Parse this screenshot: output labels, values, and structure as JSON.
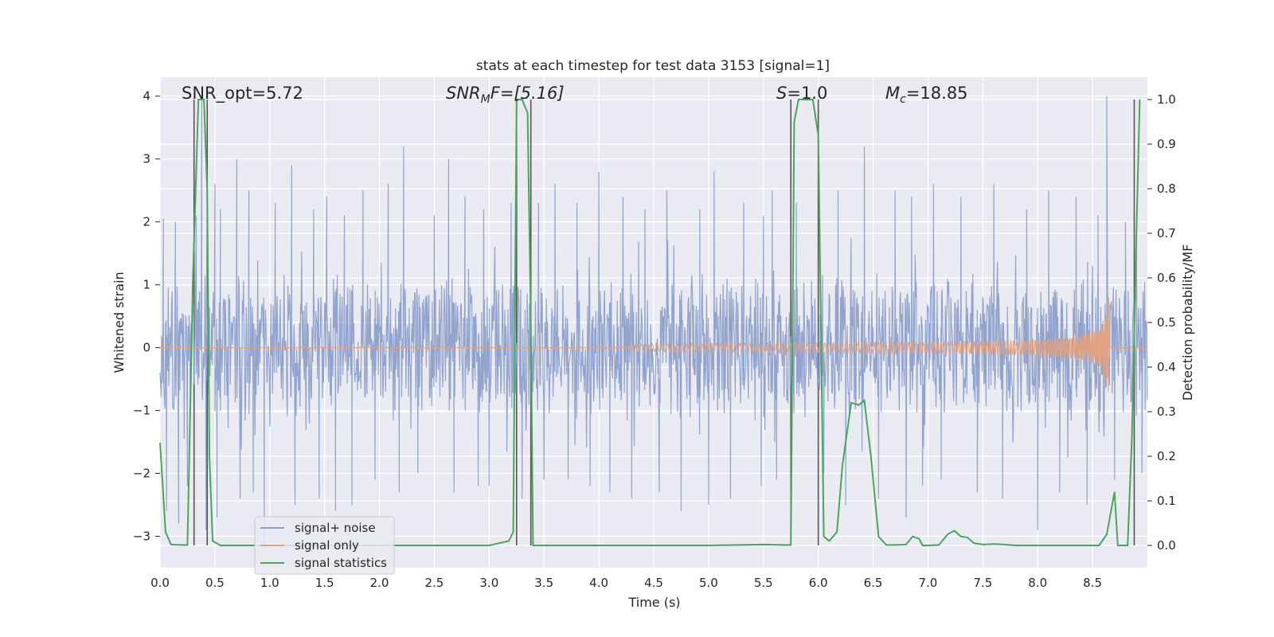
{
  "chart_data": {
    "type": "line",
    "title": "stats at each timestep for test data 3153 [signal=1]",
    "xlabel": "Time (s)",
    "ylabel": "Whitened strain",
    "y2label": "Detection probability/MF",
    "xlim": [
      0,
      9.0
    ],
    "ylim": [
      -3.5,
      4.3
    ],
    "y2lim": [
      -0.05,
      1.05
    ],
    "xticks": [
      "0.0",
      "0.5",
      "1.0",
      "1.5",
      "2.0",
      "2.5",
      "3.0",
      "3.5",
      "4.0",
      "4.5",
      "5.0",
      "5.5",
      "6.0",
      "6.5",
      "7.0",
      "7.5",
      "8.0",
      "8.5"
    ],
    "xtick_values": [
      0.0,
      0.5,
      1.0,
      1.5,
      2.0,
      2.5,
      3.0,
      3.5,
      4.0,
      4.5,
      5.0,
      5.5,
      6.0,
      6.5,
      7.0,
      7.5,
      8.0,
      8.5
    ],
    "yticks": [
      "−3",
      "−2",
      "−1",
      "0",
      "1",
      "2",
      "3",
      "4"
    ],
    "ytick_values": [
      -3,
      -2,
      -1,
      0,
      1,
      2,
      3,
      4
    ],
    "y2ticks": [
      "0.0",
      "0.1",
      "0.2",
      "0.3",
      "0.4",
      "0.5",
      "0.6",
      "0.7",
      "0.8",
      "0.9",
      "1.0"
    ],
    "y2tick_values": [
      0.0,
      0.1,
      0.2,
      0.3,
      0.4,
      0.5,
      0.6,
      0.7,
      0.8,
      0.9,
      1.0
    ],
    "grid": true,
    "legend_position": "lower-left",
    "annotations": {
      "snr_opt": "SNR_opt=5.72",
      "snr_mf_main": "SNR",
      "snr_mf_sub": "M",
      "snr_mf_rest": "F=[5.16]",
      "s_main": "S",
      "s_rest": "=1.0",
      "mc_main": "M",
      "mc_sub": "c",
      "mc_rest": "=18.85"
    },
    "vertical_lines_x": [
      0.31,
      0.43,
      3.25,
      3.38,
      5.75,
      6.0,
      8.88
    ],
    "series": [
      {
        "name": "signal+ noise",
        "color": "#8da0cb",
        "axis": "left",
        "description_values": "noise band",
        "amplitude_typical": 1.2,
        "peaks": [
          [
            0.03,
            2.05
          ],
          [
            0.06,
            -2.6
          ],
          [
            0.14,
            2.0
          ],
          [
            0.17,
            -2.8
          ],
          [
            0.25,
            -2.2
          ],
          [
            0.33,
            2.1
          ],
          [
            0.38,
            4.0
          ],
          [
            0.42,
            -2.9
          ],
          [
            0.5,
            2.6
          ],
          [
            0.52,
            -2.7
          ],
          [
            0.55,
            2.2
          ],
          [
            0.7,
            3.0
          ],
          [
            0.73,
            -2.4
          ],
          [
            0.81,
            2.5
          ],
          [
            0.85,
            -2.3
          ],
          [
            0.95,
            -3.2
          ],
          [
            1.05,
            2.3
          ],
          [
            1.2,
            2.9
          ],
          [
            1.23,
            -2.5
          ],
          [
            1.4,
            2.2
          ],
          [
            1.45,
            -2.4
          ],
          [
            1.52,
            2.4
          ],
          [
            1.6,
            -2.6
          ],
          [
            1.68,
            2.1
          ],
          [
            1.75,
            -2.5
          ],
          [
            1.85,
            2.5
          ],
          [
            1.96,
            -2.1
          ],
          [
            2.08,
            2.6
          ],
          [
            2.18,
            -2.3
          ],
          [
            2.22,
            3.2
          ],
          [
            2.35,
            -2.0
          ],
          [
            2.5,
            2.1
          ],
          [
            2.63,
            3.0
          ],
          [
            2.68,
            -2.3
          ],
          [
            2.78,
            2.4
          ],
          [
            2.9,
            -2.2
          ],
          [
            2.95,
            2.2
          ],
          [
            3.0,
            -2.2
          ],
          [
            3.2,
            2.3
          ],
          [
            3.3,
            -2.4
          ],
          [
            3.45,
            2.3
          ],
          [
            3.5,
            -2.1
          ],
          [
            3.6,
            2.6
          ],
          [
            3.72,
            -2.1
          ],
          [
            3.8,
            2.3
          ],
          [
            3.92,
            -2.2
          ],
          [
            4.0,
            2.8
          ],
          [
            4.1,
            -2.3
          ],
          [
            4.22,
            2.4
          ],
          [
            4.3,
            -2.4
          ],
          [
            4.42,
            2.2
          ],
          [
            4.55,
            -2.3
          ],
          [
            4.62,
            2.5
          ],
          [
            4.75,
            -2.6
          ],
          [
            4.92,
            2.2
          ],
          [
            5.0,
            -2.5
          ],
          [
            5.05,
            2.8
          ],
          [
            5.2,
            -2.4
          ],
          [
            5.32,
            2.3
          ],
          [
            5.48,
            -2.2
          ],
          [
            5.5,
            2.1
          ],
          [
            5.58,
            2.5
          ],
          [
            5.62,
            -2.1
          ],
          [
            5.8,
            2.3
          ],
          [
            6.05,
            -2.0
          ],
          [
            6.18,
            2.5
          ],
          [
            6.25,
            -2.5
          ],
          [
            6.42,
            3.2
          ],
          [
            6.55,
            -2.4
          ],
          [
            6.7,
            2.5
          ],
          [
            6.8,
            -2.7
          ],
          [
            6.85,
            2.4
          ],
          [
            6.95,
            -2.2
          ],
          [
            7.05,
            2.6
          ],
          [
            7.12,
            -2.1
          ],
          [
            7.3,
            2.4
          ],
          [
            7.45,
            -2.3
          ],
          [
            7.6,
            2.6
          ],
          [
            7.68,
            -2.4
          ],
          [
            7.9,
            2.2
          ],
          [
            8.0,
            -2.9
          ],
          [
            8.1,
            2.5
          ],
          [
            8.2,
            -2.3
          ],
          [
            8.35,
            2.4
          ],
          [
            8.45,
            -2.5
          ],
          [
            8.55,
            2.1
          ],
          [
            8.63,
            4.0
          ],
          [
            8.7,
            -2.1
          ],
          [
            8.8,
            2.0
          ],
          [
            8.9,
            2.0
          ],
          [
            8.95,
            -2.0
          ]
        ]
      },
      {
        "name": "signal only",
        "color": "#e5a07a",
        "axis": "left",
        "chirp": {
          "start_time": 4.3,
          "merger_time": 8.65,
          "peak_amplitude": 0.92
        }
      },
      {
        "name": "signal statistics",
        "color": "#4aa55e",
        "axis": "right",
        "x": [
          0.0,
          0.02,
          0.05,
          0.1,
          0.2,
          0.25,
          0.3,
          0.35,
          0.4,
          0.43,
          0.45,
          0.48,
          0.55,
          1.0,
          2.0,
          3.0,
          3.18,
          3.22,
          3.25,
          3.3,
          3.35,
          3.38,
          3.4,
          3.45,
          4.0,
          5.0,
          5.5,
          5.7,
          5.75,
          5.78,
          5.82,
          5.85,
          5.95,
          6.0,
          6.05,
          6.1,
          6.17,
          6.22,
          6.3,
          6.37,
          6.42,
          6.48,
          6.55,
          6.62,
          6.7,
          6.8,
          6.86,
          6.92,
          6.95,
          7.0,
          7.1,
          7.18,
          7.24,
          7.3,
          7.36,
          7.42,
          7.5,
          7.6,
          7.7,
          7.8,
          8.0,
          8.3,
          8.5,
          8.56,
          8.63,
          8.7,
          8.73,
          8.78,
          8.82,
          8.86,
          8.9,
          8.93
        ],
        "y": [
          0.23,
          0.15,
          0.03,
          0.002,
          0.001,
          0.001,
          0.6,
          1.0,
          1.0,
          0.8,
          0.2,
          0.01,
          0.0,
          0.0,
          0.0,
          0.0,
          0.01,
          0.03,
          1.0,
          1.0,
          0.97,
          0.5,
          0.0,
          0.0,
          0.0,
          0.0,
          0.002,
          0.001,
          0.001,
          0.95,
          1.0,
          1.0,
          1.0,
          0.92,
          0.02,
          0.01,
          0.03,
          0.18,
          0.32,
          0.315,
          0.325,
          0.2,
          0.02,
          0.001,
          0.001,
          0.002,
          0.02,
          0.015,
          0.0,
          0.0,
          0.001,
          0.025,
          0.033,
          0.02,
          0.018,
          0.005,
          0.002,
          0.003,
          0.002,
          0.0,
          0.0,
          0.0,
          0.0,
          0.0,
          0.025,
          0.12,
          0.0,
          0.0,
          0.0,
          0.25,
          0.7,
          1.0
        ]
      }
    ]
  }
}
